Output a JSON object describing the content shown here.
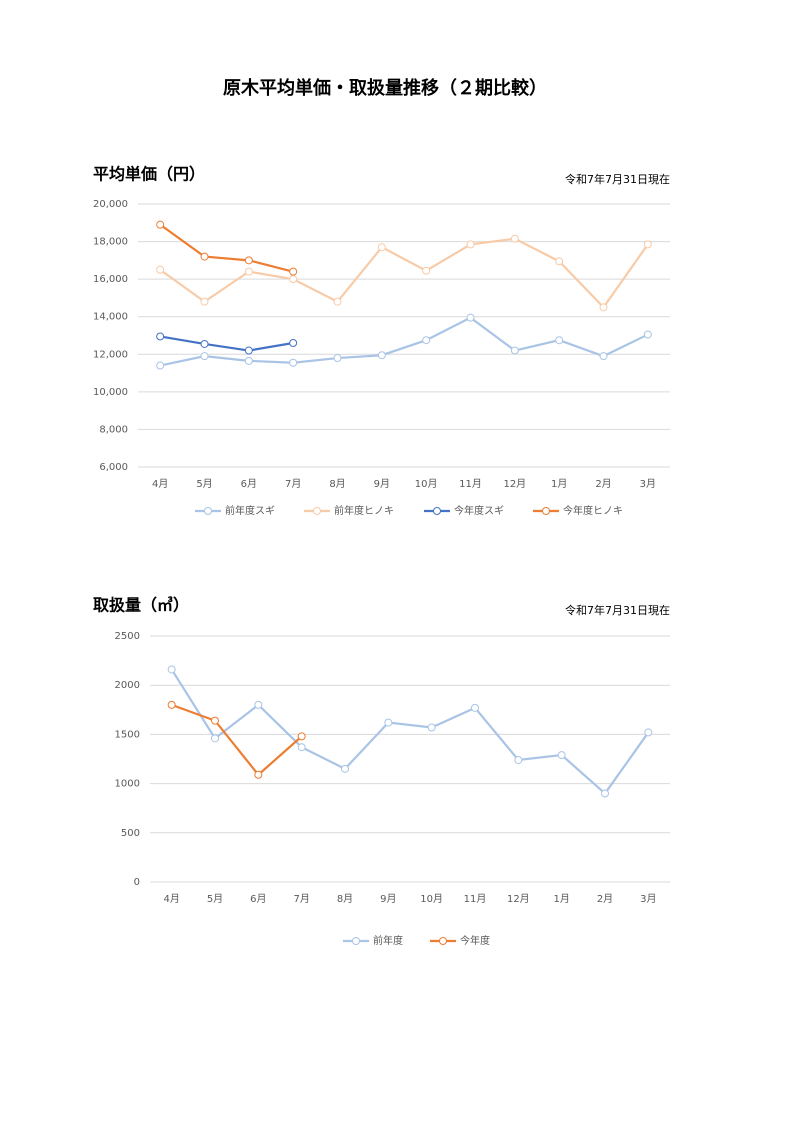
{
  "header": {
    "title": "原木平均単価・取扱量推移（２期比較）"
  },
  "chart_data": [
    {
      "type": "line",
      "title": "平均単価（円）",
      "note": "令和7年7月31日現在",
      "categories": [
        "4月",
        "5月",
        "6月",
        "7月",
        "8月",
        "9月",
        "10月",
        "11月",
        "12月",
        "1月",
        "2月",
        "3月"
      ],
      "ylim": [
        6000,
        20000
      ],
      "yticks": [
        {
          "value": 6000,
          "label": "6,000"
        },
        {
          "value": 8000,
          "label": "8,000"
        },
        {
          "value": 10000,
          "label": "10,000"
        },
        {
          "value": 12000,
          "label": "12,000"
        },
        {
          "value": 14000,
          "label": "14,000"
        },
        {
          "value": 16000,
          "label": "16,000"
        },
        {
          "value": 18000,
          "label": "18,000"
        },
        {
          "value": 20000,
          "label": "20,000"
        }
      ],
      "grid": true,
      "legend": "bottom",
      "series": [
        {
          "name": "前年度スギ",
          "color": "#a9c4e6",
          "values": [
            11400,
            11900,
            11650,
            11550,
            11800,
            11950,
            12750,
            13950,
            12200,
            12750,
            11900,
            13050
          ]
        },
        {
          "name": "前年度ヒノキ",
          "color": "#f8cba8",
          "values": [
            16500,
            14800,
            16400,
            16000,
            14800,
            17700,
            16450,
            17850,
            18150,
            16950,
            14500,
            17850
          ]
        },
        {
          "name": "今年度スギ",
          "color": "#4472c4",
          "values": [
            12950,
            12550,
            12200,
            12600,
            null,
            null,
            null,
            null,
            null,
            null,
            null,
            null
          ]
        },
        {
          "name": "今年度ヒノキ",
          "color": "#ed7d31",
          "values": [
            18900,
            17200,
            17000,
            16400,
            null,
            null,
            null,
            null,
            null,
            null,
            null,
            null
          ]
        }
      ]
    },
    {
      "type": "line",
      "title": "取扱量（㎥）",
      "note": "令和7年7月31日現在",
      "categories": [
        "4月",
        "5月",
        "6月",
        "7月",
        "8月",
        "9月",
        "10月",
        "11月",
        "12月",
        "1月",
        "2月",
        "3月"
      ],
      "ylim": [
        0,
        2500
      ],
      "yticks": [
        0,
        500,
        1000,
        1500,
        2000,
        2500
      ],
      "grid": true,
      "legend": "bottom",
      "series": [
        {
          "name": "前年度",
          "color": "#a9c4e6",
          "values": [
            2160,
            1460,
            1800,
            1370,
            1150,
            1620,
            1570,
            1770,
            1240,
            1290,
            900,
            1520
          ]
        },
        {
          "name": "今年度",
          "color": "#ed7d31",
          "values": [
            1800,
            1640,
            1090,
            1480,
            null,
            null,
            null,
            null,
            null,
            null,
            null,
            null
          ]
        }
      ]
    }
  ]
}
